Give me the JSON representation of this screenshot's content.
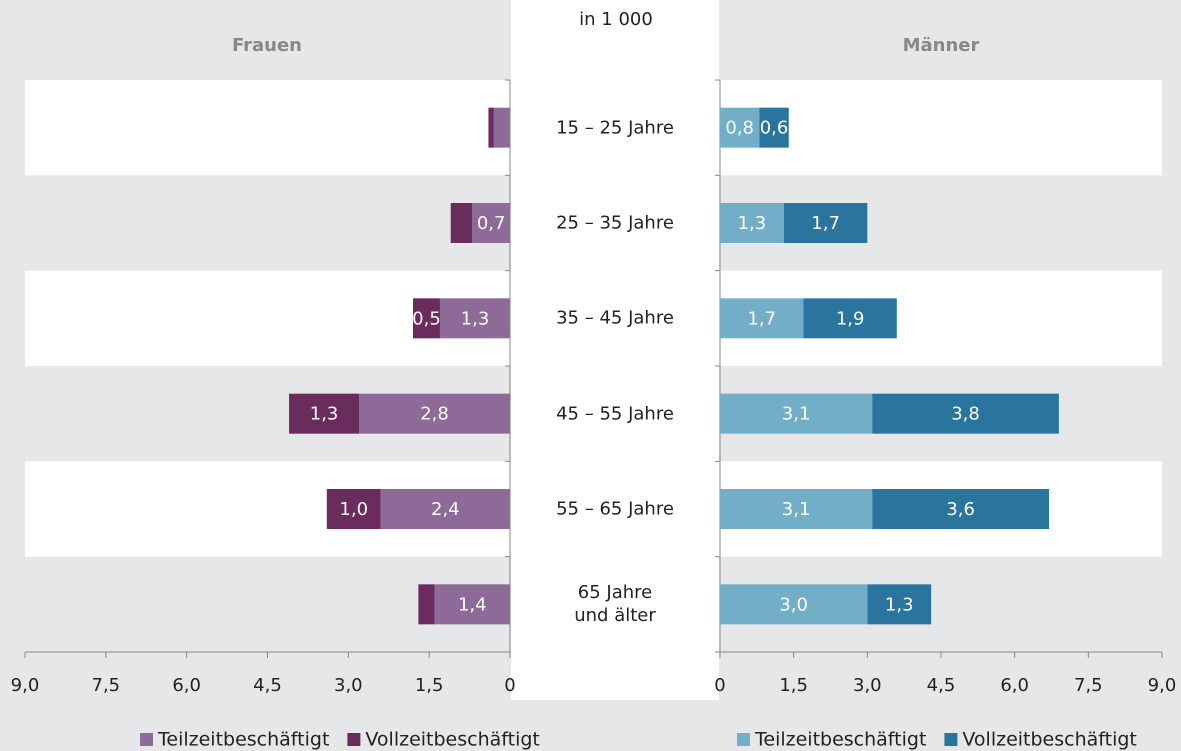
{
  "chart_data": {
    "type": "bar",
    "orientation": "horizontal",
    "subtitle": "in 1 000",
    "categories": [
      "15 – 25 Jahre",
      "25 – 35 Jahre",
      "35 – 45 Jahre",
      "45 – 55 Jahre",
      "55 – 65 Jahre",
      "65 Jahre\nund älter"
    ],
    "panels": [
      {
        "title": "Frauen",
        "direction": "left",
        "xlim": [
          0,
          9
        ],
        "xticks": [
          0,
          {
            "value": 1.5,
            "label": "1,5"
          },
          {
            "value": 3,
            "label": "3,0"
          },
          {
            "value": 4.5,
            "label": "4,5"
          },
          {
            "value": 6,
            "label": "6,0"
          },
          {
            "value": 7.5,
            "label": "7,5"
          },
          {
            "value": 9,
            "label": "9,0"
          }
        ],
        "series": [
          {
            "name": "Teilzeitbeschäftigt",
            "color": "#8d6a97",
            "values": [
              0.3,
              0.7,
              1.3,
              2.8,
              2.4,
              1.4
            ],
            "value_labels": [
              null,
              "0,7",
              "1,3",
              "2,8",
              "2,4",
              "1,4"
            ]
          },
          {
            "name": "Vollzeitbeschäftigt",
            "color": "#6a2c5d",
            "values": [
              0.1,
              0.4,
              0.5,
              1.3,
              1.0,
              0.3
            ],
            "value_labels": [
              null,
              null,
              "0,5",
              "1,3",
              "1,0",
              null
            ]
          }
        ]
      },
      {
        "title": "Männer",
        "direction": "right",
        "xlim": [
          0,
          9
        ],
        "xticks": [
          0,
          {
            "value": 1.5,
            "label": "1,5"
          },
          {
            "value": 3,
            "label": "3,0"
          },
          {
            "value": 4.5,
            "label": "4,5"
          },
          {
            "value": 6,
            "label": "6,0"
          },
          {
            "value": 7.5,
            "label": "7,5"
          },
          {
            "value": 9,
            "label": "9,0"
          }
        ],
        "series": [
          {
            "name": "Teilzeitbeschäftigt",
            "color": "#72aec7",
            "values": [
              0.8,
              1.3,
              1.7,
              3.1,
              3.1,
              3.0
            ],
            "value_labels": [
              "0,8",
              "1,3",
              "1,7",
              "3,1",
              "3,1",
              "3,0"
            ]
          },
          {
            "name": "Vollzeitbeschäftigt",
            "color": "#2a759d",
            "values": [
              0.6,
              1.7,
              1.9,
              3.8,
              3.6,
              1.3
            ],
            "value_labels": [
              "0,6",
              "1,7",
              "1,9",
              "3,8",
              "3,6",
              "1,3"
            ]
          }
        ]
      }
    ]
  }
}
